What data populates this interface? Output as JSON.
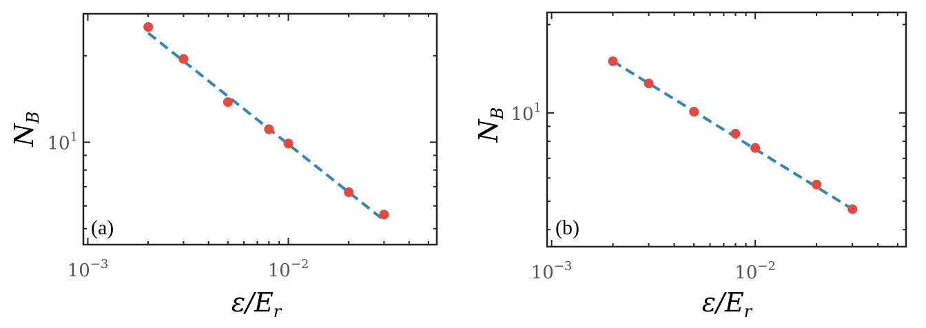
{
  "chart_data": [
    {
      "type": "scatter",
      "panel_label": "(a)",
      "xscale": "log",
      "yscale": "log",
      "xlabel": "ε/E",
      "xlabel_sub": "r",
      "ylabel": "N",
      "ylabel_sub": "B",
      "xlim": [
        0.00095,
        0.055
      ],
      "ylim": [
        4.4,
        28
      ],
      "x_ticks": [
        {
          "value": 0.001,
          "base": "10",
          "exp": "−3"
        },
        {
          "value": 0.01,
          "base": "10",
          "exp": "−2"
        }
      ],
      "y_ticks": [
        {
          "value": 10,
          "base": "10",
          "exp": "1"
        }
      ],
      "x": [
        0.002,
        0.003,
        0.005,
        0.008,
        0.01,
        0.02,
        0.03
      ],
      "y": [
        25.2,
        19.5,
        13.8,
        11.1,
        9.9,
        6.7,
        5.6
      ],
      "fit": {
        "x": [
          0.002,
          0.03
        ],
        "y": [
          24.0,
          5.35
        ]
      }
    },
    {
      "type": "scatter",
      "panel_label": "(b)",
      "xscale": "log",
      "yscale": "log",
      "xlabel": "ε/E",
      "xlabel_sub": "r",
      "ylabel": "N",
      "ylabel_sub": "B",
      "xlim": [
        0.00095,
        0.055
      ],
      "ylim": [
        3.5,
        22
      ],
      "x_ticks": [
        {
          "value": 0.001,
          "base": "10",
          "exp": "−3"
        },
        {
          "value": 0.01,
          "base": "10",
          "exp": "−2"
        }
      ],
      "y_ticks": [
        {
          "value": 10,
          "base": "10",
          "exp": "1"
        }
      ],
      "x": [
        0.002,
        0.003,
        0.005,
        0.008,
        0.01,
        0.02,
        0.03
      ],
      "y": [
        15.0,
        12.6,
        10.1,
        8.5,
        7.6,
        5.7,
        4.7
      ],
      "fit": {
        "x": [
          0.002,
          0.03
        ],
        "y": [
          15.0,
          4.7
        ]
      }
    }
  ]
}
